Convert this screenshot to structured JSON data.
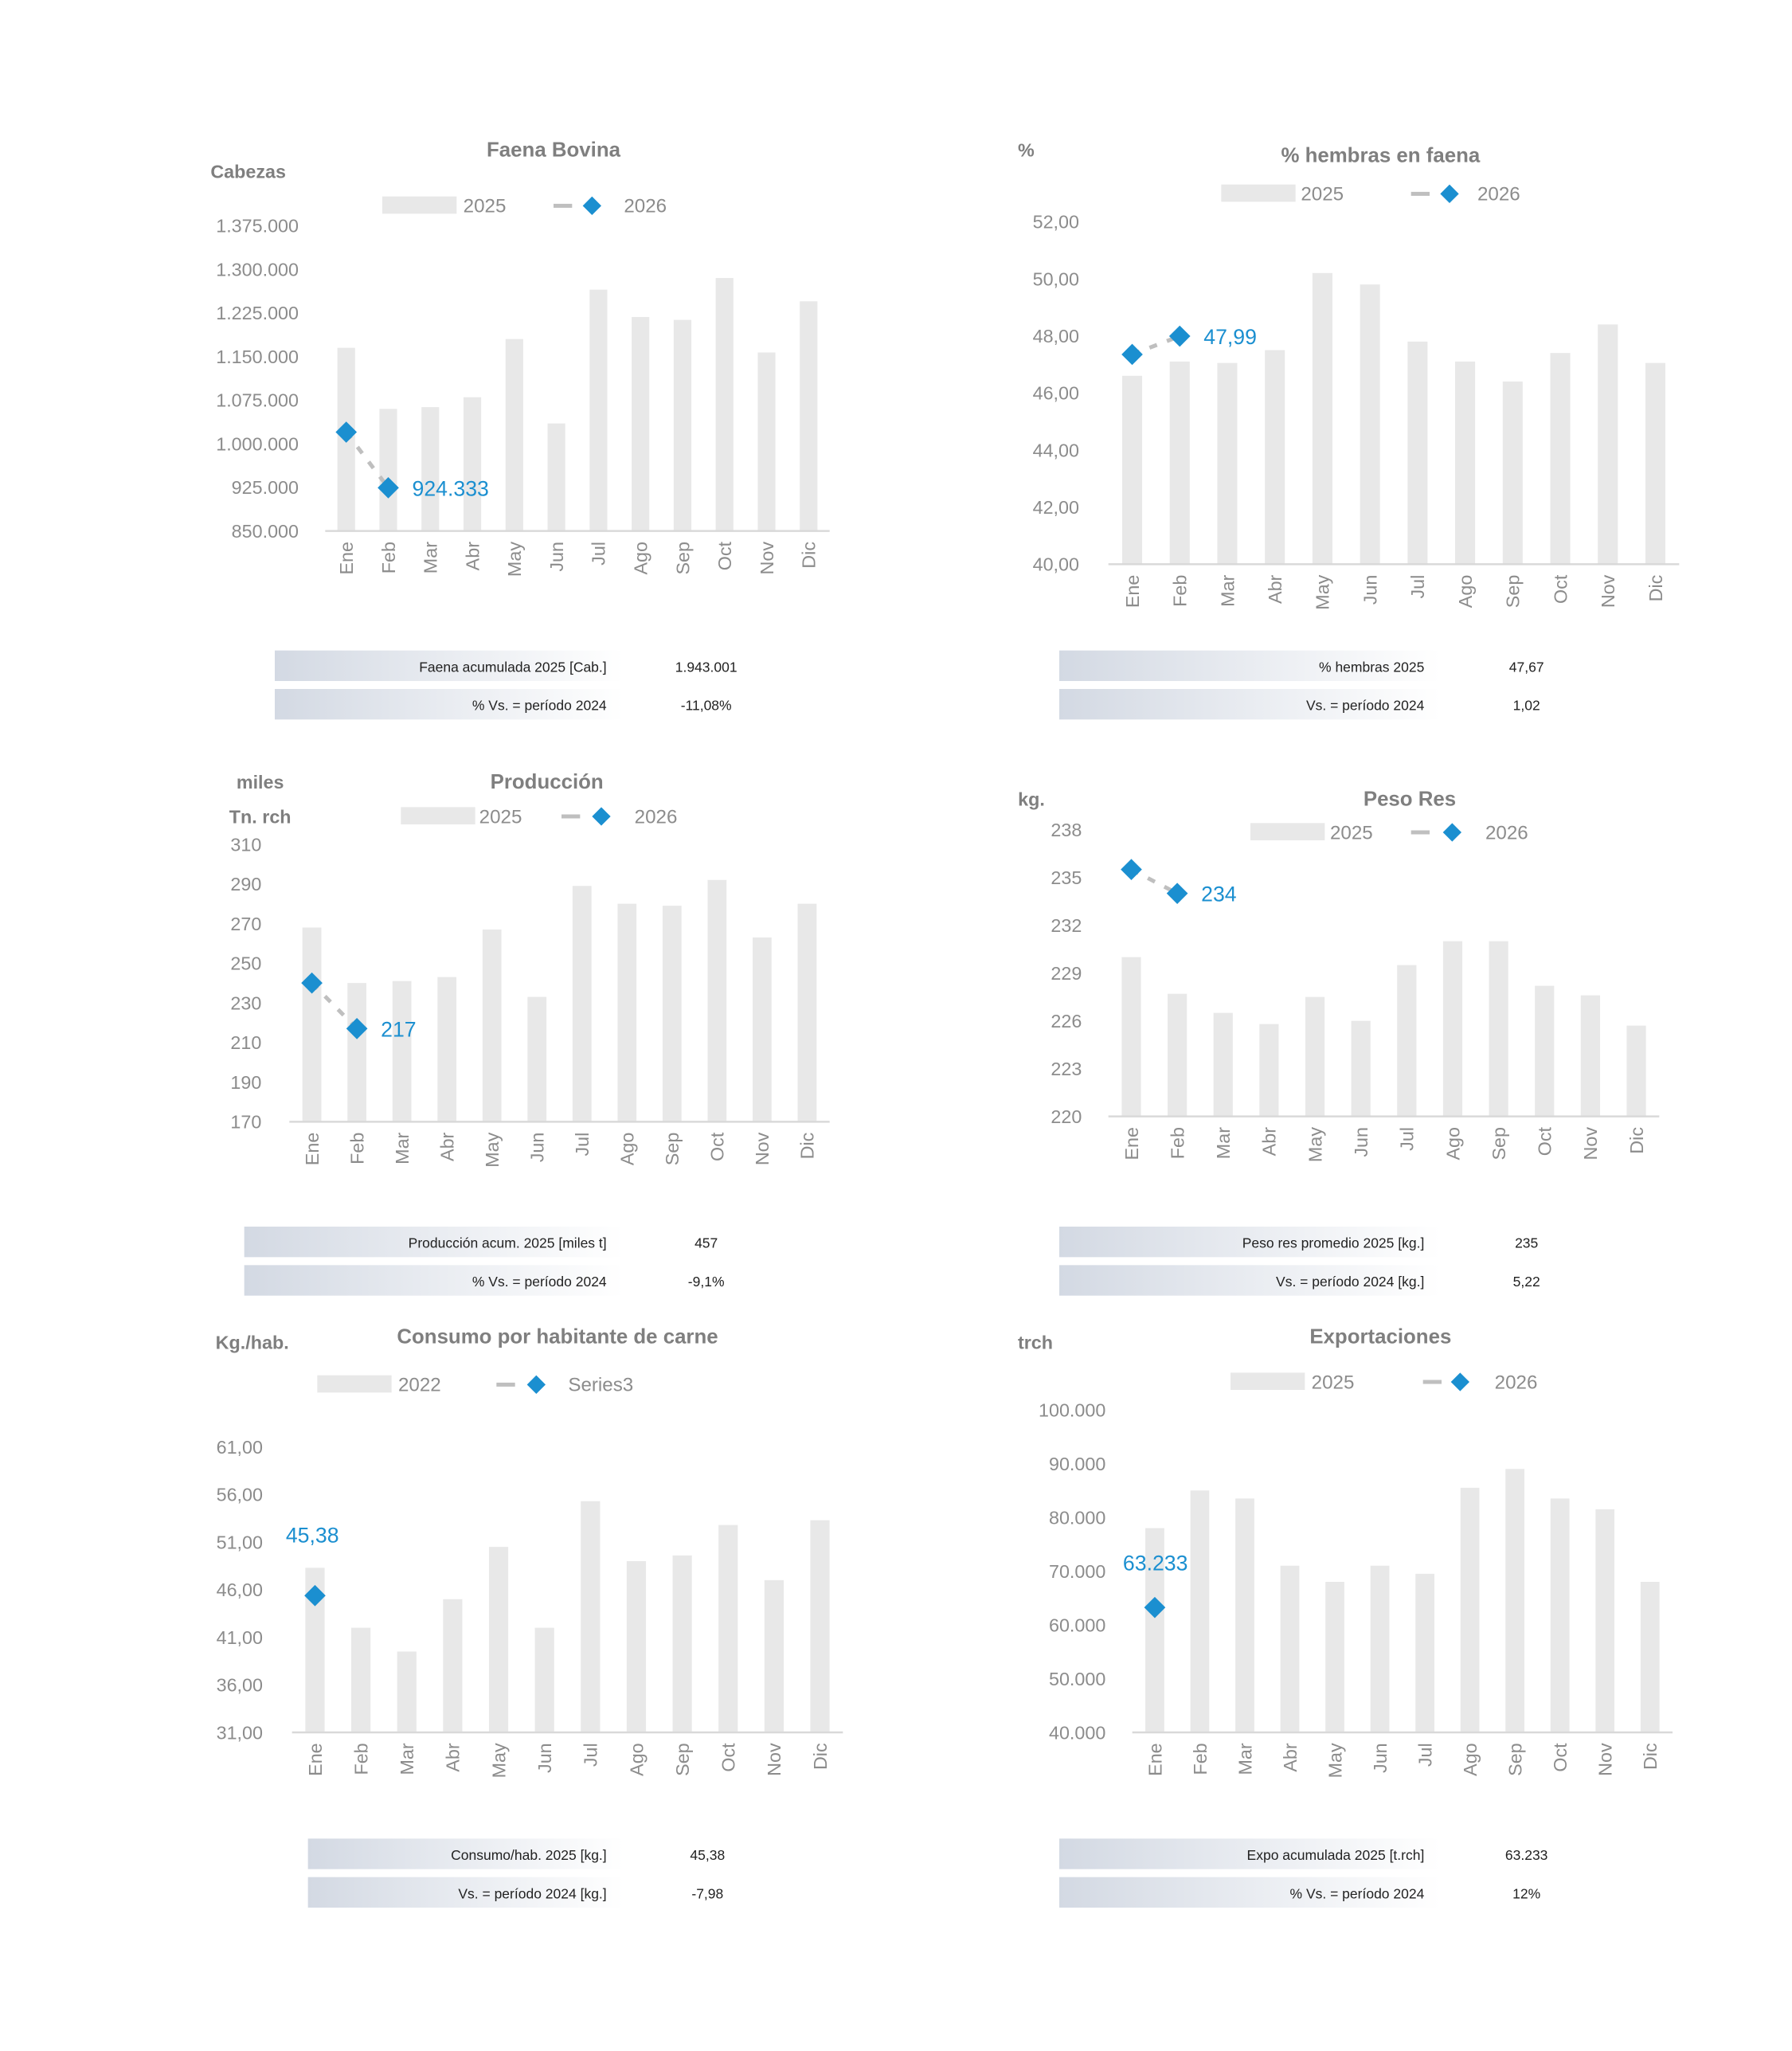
{
  "months": [
    "Ene",
    "Feb",
    "Mar",
    "Abr",
    "May",
    "Jun",
    "Jul",
    "Ago",
    "Sep",
    "Oct",
    "Nov",
    "Dic"
  ],
  "colors": {
    "bar": "#e8e8e8",
    "point": "#1b8fd0",
    "line": "#bfbfbf",
    "axis": "#d9d9d9"
  },
  "chart_data": [
    {
      "type": "bar",
      "title": "Faena Bovina",
      "ylabel": [
        "Cabezas"
      ],
      "ylim": [
        850000,
        1375000
      ],
      "yticks": [
        850000,
        925000,
        1000000,
        1075000,
        1150000,
        1225000,
        1300000,
        1375000
      ],
      "ytick_labels": [
        "850.000",
        "925.000",
        "1.000.000",
        "1.075.000",
        "1.150.000",
        "1.225.000",
        "1.300.000",
        "1.375.000"
      ],
      "series": [
        {
          "name": "2025",
          "kind": "bar",
          "values": [
            1165000,
            1060000,
            1063000,
            1080000,
            1180000,
            1035000,
            1265000,
            1218000,
            1213000,
            1285000,
            1157000,
            1245000
          ]
        },
        {
          "name": "2026",
          "kind": "line",
          "values": [
            1020000,
            924333
          ]
        }
      ],
      "data_label": "924.333",
      "summary": [
        {
          "label": "Faena acumulada 2025 [Cab.]",
          "value": "1.943.001"
        },
        {
          "label": "% Vs. = período 2024",
          "value": "-11,08%"
        }
      ]
    },
    {
      "type": "bar",
      "title": "% hembras en faena",
      "ylabel": [
        "%"
      ],
      "ylim": [
        40,
        52
      ],
      "yticks": [
        40,
        42,
        44,
        46,
        48,
        50,
        52
      ],
      "ytick_labels": [
        "40,00",
        "42,00",
        "44,00",
        "46,00",
        "48,00",
        "50,00",
        "52,00"
      ],
      "series": [
        {
          "name": "2025",
          "kind": "bar",
          "values": [
            46.6,
            47.1,
            47.05,
            47.5,
            50.2,
            49.8,
            47.8,
            47.1,
            46.4,
            47.4,
            48.4,
            47.05
          ]
        },
        {
          "name": "2026",
          "kind": "line",
          "values": [
            47.35,
            47.99
          ]
        }
      ],
      "data_label": "47,99",
      "summary": [
        {
          "label": "% hembras 2025",
          "value": "47,67"
        },
        {
          "label": "Vs. = período 2024",
          "value": "1,02"
        }
      ]
    },
    {
      "type": "bar",
      "title": "Producción",
      "ylabel": [
        "miles",
        "Tn. rch"
      ],
      "ylim": [
        170,
        310
      ],
      "yticks": [
        170,
        190,
        210,
        230,
        250,
        270,
        290,
        310
      ],
      "ytick_labels": [
        "170",
        "190",
        "210",
        "230",
        "250",
        "270",
        "290",
        "310"
      ],
      "series": [
        {
          "name": "2025",
          "kind": "bar",
          "values": [
            268,
            240,
            241,
            243,
            267,
            233,
            289,
            280,
            279,
            292,
            263,
            280
          ]
        },
        {
          "name": "2026",
          "kind": "line",
          "values": [
            240,
            217
          ]
        }
      ],
      "data_label": "217",
      "summary": [
        {
          "label": "Producción acum. 2025 [miles t]",
          "value": "457"
        },
        {
          "label": "% Vs. = período 2024",
          "value": "-9,1%"
        }
      ]
    },
    {
      "type": "bar",
      "title": "Peso Res",
      "ylabel": [
        "kg."
      ],
      "ylim": [
        220,
        238
      ],
      "yticks": [
        220,
        223,
        226,
        229,
        232,
        235,
        238
      ],
      "ytick_labels": [
        "220",
        "223",
        "226",
        "229",
        "232",
        "235",
        "238"
      ],
      "series": [
        {
          "name": "2025",
          "kind": "bar",
          "values": [
            230,
            227.7,
            226.5,
            225.8,
            227.5,
            226,
            229.5,
            231,
            231,
            228.2,
            227.6,
            225.7
          ]
        },
        {
          "name": "2026",
          "kind": "line",
          "values": [
            235.5,
            234
          ]
        }
      ],
      "data_label": "234",
      "summary": [
        {
          "label": "Peso res promedio 2025 [kg.]",
          "value": "235"
        },
        {
          "label": "Vs. = período 2024 [kg.]",
          "value": "5,22"
        }
      ]
    },
    {
      "type": "bar",
      "title": "Consumo por habitante de carne",
      "ylabel": [
        "Kg./hab."
      ],
      "ylim": [
        31,
        61
      ],
      "yticks": [
        31,
        36,
        41,
        46,
        51,
        56,
        61
      ],
      "ytick_labels": [
        "31,00",
        "36,00",
        "41,00",
        "46,00",
        "51,00",
        "56,00",
        "61,00"
      ],
      "series": [
        {
          "name": "2022",
          "kind": "bar",
          "values": [
            48.3,
            42,
            39.5,
            45,
            50.5,
            42,
            55.3,
            49,
            49.6,
            52.8,
            47,
            53.3
          ]
        },
        {
          "name": "Series3",
          "kind": "line",
          "values": [
            45.38
          ]
        }
      ],
      "data_label": "45,38",
      "summary": [
        {
          "label": "Consumo/hab. 2025 [kg.]",
          "value": "45,38"
        },
        {
          "label": "Vs. = período 2024 [kg.]",
          "value": "-7,98"
        }
      ]
    },
    {
      "type": "bar",
      "title": "Exportaciones",
      "ylabel": [
        "trch"
      ],
      "ylim": [
        40000,
        100000
      ],
      "yticks": [
        40000,
        50000,
        60000,
        70000,
        80000,
        90000,
        100000
      ],
      "ytick_labels": [
        "40.000",
        "50.000",
        "60.000",
        "70.000",
        "80.000",
        "90.000",
        "100.000"
      ],
      "series": [
        {
          "name": "2025",
          "kind": "bar",
          "values": [
            78000,
            85000,
            83500,
            71000,
            68000,
            71000,
            69500,
            85500,
            89000,
            83500,
            81500,
            68000
          ]
        },
        {
          "name": "2026",
          "kind": "line",
          "values": [
            63233
          ]
        }
      ],
      "data_label": "63.233",
      "summary": [
        {
          "label": "Expo acumulada 2025 [t.rch]",
          "value": "63.233"
        },
        {
          "label": "% Vs. = período 2024",
          "value": "12%"
        }
      ]
    }
  ]
}
